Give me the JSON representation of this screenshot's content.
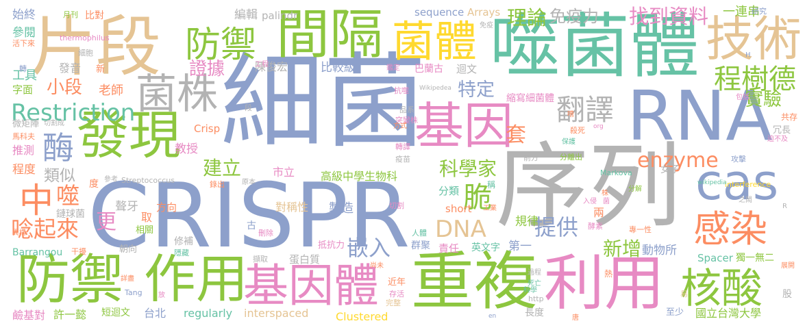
{
  "palette": {
    "green": "#8dc63f",
    "teal": "#66c2a5",
    "orange": "#fc8d62",
    "blue": "#8da0cb",
    "pink": "#e78ac3",
    "yellow": "#e5c494",
    "gold": "#ffd92f",
    "gray": "#b3b3b3"
  },
  "words": [
    {
      "text": "細菌",
      "color": "blue"
    },
    {
      "text": "序列",
      "color": "gray"
    },
    {
      "text": "CRISPR",
      "color": "blue"
    },
    {
      "text": "噬菌體",
      "color": "teal"
    },
    {
      "text": "片段",
      "color": "yellow"
    },
    {
      "text": "間隔",
      "color": "green"
    },
    {
      "text": "重複",
      "color": "green"
    },
    {
      "text": "利用",
      "color": "pink"
    },
    {
      "text": "防禦",
      "color": "green"
    },
    {
      "text": "作用",
      "color": "green"
    },
    {
      "text": "發現",
      "color": "green"
    },
    {
      "text": "RNA",
      "color": "blue"
    },
    {
      "text": "基因",
      "color": "pink"
    },
    {
      "text": "基因體",
      "color": "pink"
    },
    {
      "text": "菌體",
      "color": "gold"
    },
    {
      "text": "技術",
      "color": "yellow"
    },
    {
      "text": "核酸",
      "color": "green"
    },
    {
      "text": "菌株",
      "color": "gray"
    },
    {
      "text": "cas",
      "color": "blue"
    },
    {
      "text": "感染",
      "color": "orange"
    },
    {
      "text": "防禦",
      "color": "green"
    },
    {
      "text": "中",
      "color": "orange"
    },
    {
      "text": "酶",
      "color": "blue"
    },
    {
      "text": "Restriction",
      "color": "teal"
    },
    {
      "text": "翻譯",
      "color": "gray"
    },
    {
      "text": "程樹德",
      "color": "green"
    },
    {
      "text": "找到資料",
      "color": "pink"
    },
    {
      "text": "理論",
      "color": "green"
    },
    {
      "text": "免疫力",
      "color": "gray"
    },
    {
      "text": "一連串",
      "color": "green"
    },
    {
      "text": "實驗",
      "color": "green"
    },
    {
      "text": "enzyme",
      "color": "orange"
    },
    {
      "text": "科學家",
      "color": "green"
    },
    {
      "text": "脆",
      "color": "green"
    },
    {
      "text": "嵌入",
      "color": "blue"
    },
    {
      "text": "提供",
      "color": "blue"
    },
    {
      "text": "新增",
      "color": "green"
    },
    {
      "text": "DNA",
      "color": "yellow"
    },
    {
      "text": "套",
      "color": "orange"
    },
    {
      "text": "特定",
      "color": "blue"
    },
    {
      "text": "建立",
      "color": "green"
    },
    {
      "text": "證據",
      "color": "pink"
    },
    {
      "text": "小段",
      "color": "orange"
    },
    {
      "text": "噬",
      "color": "orange"
    },
    {
      "text": "唸起來",
      "color": "orange"
    },
    {
      "text": "更",
      "color": "pink"
    },
    {
      "text": "類似",
      "color": "gray"
    },
    {
      "text": "教授",
      "color": "pink"
    },
    {
      "text": "老師",
      "color": "orange"
    },
    {
      "text": "發音",
      "color": "gray"
    },
    {
      "text": "工具",
      "color": "teal"
    },
    {
      "text": "參閱",
      "color": "teal"
    },
    {
      "text": "始終",
      "color": "blue"
    },
    {
      "text": "編輯",
      "color": "gray"
    },
    {
      "text": "palindr",
      "color": "gray"
    },
    {
      "text": "sequence",
      "color": "blue"
    },
    {
      "text": "Arrays",
      "color": "yellow"
    },
    {
      "text": "比較級",
      "color": "blue"
    },
    {
      "text": "陳俊宏",
      "color": "gray"
    },
    {
      "text": "巴蘭古",
      "color": "pink"
    },
    {
      "text": "迴文",
      "color": "gray"
    },
    {
      "text": "縮寫細菌體",
      "color": "pink"
    },
    {
      "text": "高級中學生物科",
      "color": "green"
    },
    {
      "text": "分類",
      "color": "teal"
    },
    {
      "text": "對稱性",
      "color": "yellow"
    },
    {
      "text": "製造",
      "color": "blue"
    },
    {
      "text": "short",
      "color": "orange"
    },
    {
      "text": "規律",
      "color": "green"
    },
    {
      "text": "第一",
      "color": "blue"
    },
    {
      "text": "動物所",
      "color": "blue"
    },
    {
      "text": "Spacer",
      "color": "teal"
    },
    {
      "text": "獨一無二",
      "color": "green"
    },
    {
      "text": "英文字",
      "color": "teal"
    },
    {
      "text": "責任",
      "color": "pink"
    },
    {
      "text": "群聚",
      "color": "blue"
    },
    {
      "text": "抵抗力",
      "color": "pink"
    },
    {
      "text": "蛋白質",
      "color": "gray"
    },
    {
      "text": "近年",
      "color": "orange"
    },
    {
      "text": "regularly",
      "color": "teal"
    },
    {
      "text": "interspaced",
      "color": "yellow"
    },
    {
      "text": "Clustered",
      "color": "gold"
    },
    {
      "text": "國立台灣大學",
      "color": "green"
    },
    {
      "text": "長度",
      "color": "gray"
    },
    {
      "text": "至少",
      "color": "blue"
    },
    {
      "text": "鹼基對",
      "color": "pink"
    },
    {
      "text": "許一懿",
      "color": "green"
    },
    {
      "text": "短迴文",
      "color": "green"
    },
    {
      "text": "台北",
      "color": "blue"
    },
    {
      "text": "Barrangou",
      "color": "teal"
    },
    {
      "text": "干擾",
      "color": "orange"
    },
    {
      "text": "朝向",
      "color": "gray"
    },
    {
      "text": "修補",
      "color": "gray"
    },
    {
      "text": "相關",
      "color": "green"
    },
    {
      "text": "方向",
      "color": "orange"
    },
    {
      "text": "鏈球菌",
      "color": "gray"
    },
    {
      "text": "聱牙",
      "color": "gray"
    },
    {
      "text": "取",
      "color": "orange"
    },
    {
      "text": "度",
      "color": "orange"
    },
    {
      "text": "程度",
      "color": "orange"
    },
    {
      "text": "推測",
      "color": "pink"
    },
    {
      "text": "馬科夫",
      "color": "orange"
    },
    {
      "text": "微矩陣",
      "color": "gray"
    },
    {
      "text": "字面",
      "color": "green"
    },
    {
      "text": "Crisp",
      "color": "orange"
    },
    {
      "text": "女子",
      "color": "gray"
    },
    {
      "text": "市立",
      "color": "pink"
    },
    {
      "text": "共存",
      "color": "orange"
    },
    {
      "text": "冗長",
      "color": "gray"
    },
    {
      "text": "攻擊",
      "color": "blue"
    },
    {
      "text": "殺死",
      "color": "orange"
    },
    {
      "text": "保護",
      "color": "teal"
    },
    {
      "text": "前方",
      "color": "gray"
    },
    {
      "text": "分離出",
      "color": "green"
    },
    {
      "text": "Markova",
      "color": "teal"
    },
    {
      "text": "分解",
      "color": "green"
    },
    {
      "text": "interference",
      "color": "gold"
    },
    {
      "text": "wikipedia",
      "color": "teal"
    },
    {
      "text": "之鬧",
      "color": "gray"
    },
    {
      "text": "入侵",
      "color": "pink"
    },
    {
      "text": "Streptococcus",
      "color": "gray"
    },
    {
      "text": "thermophilus",
      "color": "pink"
    },
    {
      "text": "月刊",
      "color": "green"
    },
    {
      "text": "比對",
      "color": "orange"
    },
    {
      "text": "活下來",
      "color": "orange"
    },
    {
      "text": "細胞",
      "color": "gray"
    },
    {
      "text": "新",
      "color": "orange"
    },
    {
      "text": "轉",
      "color": "blue"
    },
    {
      "text": "Wikipedea",
      "color": "gray"
    },
    {
      "text": "抗噬",
      "color": "pink"
    },
    {
      "text": "品系",
      "color": "gray"
    },
    {
      "text": "突變株",
      "color": "pink"
    },
    {
      "text": "方式",
      "color": "orange"
    },
    {
      "text": "轉譯",
      "color": "pink"
    },
    {
      "text": "疫苗",
      "color": "gray"
    },
    {
      "text": "切割",
      "color": "pink"
    },
    {
      "text": "工業",
      "color": "orange"
    },
    {
      "text": "酵素",
      "color": "pink"
    },
    {
      "text": "專一性",
      "color": "orange"
    },
    {
      "text": "兩",
      "color": "orange"
    },
    {
      "text": "人體",
      "color": "teal"
    },
    {
      "text": "稱",
      "color": "teal"
    },
    {
      "text": "古",
      "color": "blue"
    },
    {
      "text": "刪除",
      "color": "pink"
    },
    {
      "text": "參考",
      "color": "gray"
    },
    {
      "text": "錄出",
      "color": "orange"
    },
    {
      "text": "原本",
      "color": "gray"
    },
    {
      "text": "擷取",
      "color": "gray"
    },
    {
      "text": "尚未",
      "color": "orange"
    },
    {
      "text": "過程",
      "color": "gray"
    },
    {
      "text": "死亡",
      "color": "teal"
    },
    {
      "text": "科學",
      "color": "teal"
    },
    {
      "text": "存活",
      "color": "pink"
    },
    {
      "text": "完整",
      "color": "yellow"
    },
    {
      "text": "http",
      "color": "gray"
    },
    {
      "text": "en",
      "color": "blue"
    },
    {
      "text": "唐",
      "color": "orange"
    },
    {
      "text": "易",
      "color": "yellow"
    },
    {
      "text": "股",
      "color": "gray"
    },
    {
      "text": "展開",
      "color": "orange"
    },
    {
      "text": "熱",
      "color": "orange"
    },
    {
      "text": "詳盡",
      "color": "orange"
    },
    {
      "text": "Tang",
      "color": "blue"
    },
    {
      "text": "放",
      "color": "pink"
    },
    {
      "text": "隱藏",
      "color": "teal"
    },
    {
      "text": "鑑定",
      "color": "pink"
    },
    {
      "text": "免疫",
      "color": "gray"
    },
    {
      "text": "研究",
      "color": "blue"
    },
    {
      "text": "包括",
      "color": "pink"
    },
    {
      "text": "切割成",
      "color": "gray"
    },
    {
      "text": "段",
      "color": "gray"
    },
    {
      "text": "工程",
      "color": "pink"
    },
    {
      "text": "迫不及",
      "color": "pink"
    },
    {
      "text": "嘈",
      "color": "orange"
    },
    {
      "text": "異構",
      "color": "orange"
    },
    {
      "text": "R",
      "color": "gray"
    },
    {
      "text": "H",
      "color": "blue"
    },
    {
      "text": "T",
      "color": "gray"
    },
    {
      "text": "org",
      "color": "pink"
    },
    {
      "text": "菌",
      "color": "pink"
    },
    {
      "text": "株",
      "color": "orange"
    }
  ]
}
